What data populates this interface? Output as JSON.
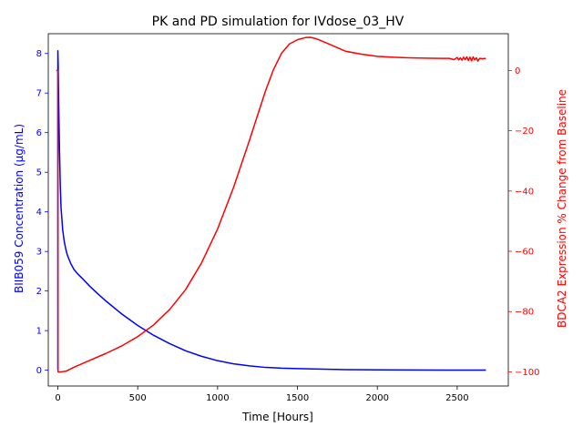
{
  "chart_data": {
    "type": "line",
    "title": "PK and PD simulation for IVdose_03_HV",
    "xlabel": "Time [Hours]",
    "ylabel_left": "BIIB059 Concentration (µg/mL)",
    "ylabel_right": "BDCA2 Expression % Change from Baseline",
    "xlim": [
      -60,
      2820
    ],
    "ylim_left": [
      -0.4,
      8.5
    ],
    "ylim_right": [
      -104.7,
      12.2
    ],
    "x_ticks": [
      0,
      500,
      1000,
      1500,
      2000,
      2500
    ],
    "y_left_ticks": [
      0,
      1,
      2,
      3,
      4,
      5,
      6,
      7,
      8
    ],
    "y_right_ticks": [
      0,
      -20,
      -40,
      -60,
      -80,
      -100
    ],
    "grid": false,
    "colors": {
      "left_axis": "#0000ff",
      "right_axis": "#ff0000",
      "text": "#000000"
    },
    "series": [
      {
        "axis": "left",
        "color": "#0000ff",
        "x": [
          0,
          0,
          2,
          5,
          10,
          15,
          20,
          30,
          40,
          50,
          60,
          80,
          100,
          120,
          150,
          200,
          250,
          300,
          400,
          500,
          600,
          700,
          800,
          900,
          1000,
          1100,
          1200,
          1300,
          1400,
          1500,
          1600,
          1800,
          2000,
          2200,
          2400,
          2680
        ],
        "y": [
          0,
          8.07,
          7.7,
          6.8,
          5.6,
          4.7,
          4.1,
          3.55,
          3.25,
          3.05,
          2.9,
          2.7,
          2.55,
          2.45,
          2.33,
          2.12,
          1.93,
          1.75,
          1.42,
          1.13,
          0.88,
          0.67,
          0.49,
          0.35,
          0.24,
          0.16,
          0.11,
          0.07,
          0.05,
          0.04,
          0.03,
          0.015,
          0.008,
          0.004,
          0.002,
          0.001
        ]
      },
      {
        "axis": "right",
        "color": "#ff0000",
        "x": [
          -10,
          0,
          1,
          3,
          5,
          10,
          20,
          50,
          100,
          200,
          300,
          400,
          500,
          600,
          700,
          800,
          900,
          1000,
          1100,
          1200,
          1250,
          1300,
          1350,
          1400,
          1450,
          1500,
          1550,
          1580,
          1620,
          1700,
          1800,
          1900,
          2000,
          2100,
          2200,
          2300,
          2400,
          2450,
          2480,
          2500,
          2510,
          2520,
          2530,
          2540,
          2550,
          2560,
          2570,
          2580,
          2590,
          2600,
          2610,
          2620,
          2630,
          2640,
          2660,
          2680
        ],
        "y": [
          0,
          0,
          -100,
          -100,
          -100,
          -100,
          -100,
          -99.8,
          -98.5,
          -96.2,
          -93.9,
          -91.4,
          -88.3,
          -84.4,
          -79.3,
          -72.7,
          -63.8,
          -52.6,
          -38.8,
          -23.1,
          -14.9,
          -6.8,
          0.3,
          5.7,
          8.8,
          10.2,
          10.9,
          11.0,
          10.5,
          8.7,
          6.4,
          5.4,
          4.7,
          4.4,
          4.2,
          4.1,
          4.0,
          4.0,
          3.6,
          4.3,
          3.5,
          4.2,
          3.4,
          4.4,
          3.6,
          4.5,
          3.3,
          4.4,
          3.2,
          4.5,
          3.5,
          4.2,
          3.1,
          4.0,
          3.9,
          4.0
        ]
      }
    ]
  }
}
